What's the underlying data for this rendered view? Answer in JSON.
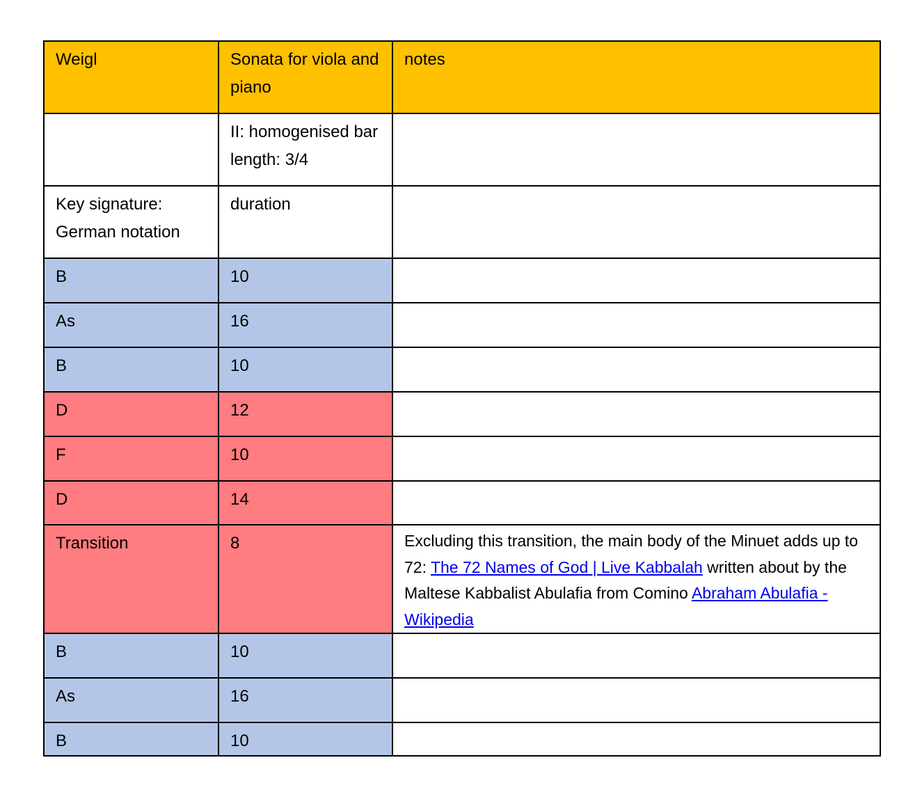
{
  "colors": {
    "header": "#FFC000",
    "blue": "#B4C6E7",
    "red": "#FF7C80",
    "link": "#0000EE"
  },
  "header": {
    "col1": "Weigl",
    "col2": "Sonata for viola and piano",
    "col3": "notes"
  },
  "subheader": {
    "col1": "",
    "col2": "II: homogenised bar length: 3/4",
    "col3": ""
  },
  "labels": {
    "col1": "Key signature: German notation",
    "col2": "duration",
    "col3": ""
  },
  "rows": [
    {
      "key": "B",
      "duration": "10",
      "color": "blue"
    },
    {
      "key": "As",
      "duration": "16",
      "color": "blue"
    },
    {
      "key": "B",
      "duration": "10",
      "color": "blue"
    },
    {
      "key": "D",
      "duration": "12",
      "color": "red"
    },
    {
      "key": "F",
      "duration": "10",
      "color": "red"
    },
    {
      "key": "D",
      "duration": "14",
      "color": "red"
    },
    {
      "key": "Transition",
      "duration": "8",
      "color": "red"
    },
    {
      "key": "B",
      "duration": "10",
      "color": "blue"
    },
    {
      "key": "As",
      "duration": "16",
      "color": "blue"
    },
    {
      "key": "B",
      "duration": "10",
      "color": "blue"
    }
  ],
  "transition_note": {
    "text1": "Excluding this transition, the main body of the Minuet adds up to 72: ",
    "link1": "The 72 Names of God | Live Kabbalah",
    "text2": " written about by the Maltese Kabbalist Abulafia from Comino ",
    "link2": "Abraham Abulafia - Wikipedia"
  }
}
